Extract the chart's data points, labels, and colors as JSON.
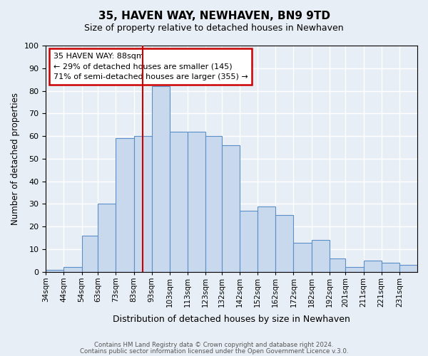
{
  "title": "35, HAVEN WAY, NEWHAVEN, BN9 9TD",
  "subtitle": "Size of property relative to detached houses in Newhaven",
  "xlabel": "Distribution of detached houses by size in Newhaven",
  "ylabel": "Number of detached properties",
  "bar_labels": [
    "34sqm",
    "44sqm",
    "54sqm",
    "63sqm",
    "73sqm",
    "83sqm",
    "93sqm",
    "103sqm",
    "113sqm",
    "123sqm",
    "132sqm",
    "142sqm",
    "152sqm",
    "162sqm",
    "172sqm",
    "182sqm",
    "192sqm",
    "201sqm",
    "211sqm",
    "221sqm",
    "231sqm"
  ],
  "bar_values": [
    1,
    2,
    16,
    30,
    59,
    60,
    82,
    62,
    62,
    60,
    56,
    27,
    29,
    25,
    13,
    14,
    6,
    2,
    5,
    4,
    3
  ],
  "bin_edges": [
    34,
    44,
    54,
    63,
    73,
    83,
    93,
    103,
    113,
    123,
    132,
    142,
    152,
    162,
    172,
    182,
    192,
    201,
    211,
    221,
    231,
    241
  ],
  "bar_color": "#c9d9ed",
  "bar_edge_color": "#5b8fc9",
  "background_color": "#e8eef5",
  "plot_bg_color": "#e8eef5",
  "grid_color": "#ffffff",
  "annotation_box_text": "35 HAVEN WAY: 88sqm\n← 29% of detached houses are smaller (145)\n71% of semi-detached houses are larger (355) →",
  "annotation_box_edge_color": "#cc0000",
  "annotation_box_bg": "#ffffff",
  "redline_x": 88,
  "ylim": [
    0,
    100
  ],
  "footnote1": "Contains HM Land Registry data © Crown copyright and database right 2024.",
  "footnote2": "Contains public sector information licensed under the Open Government Licence v.3.0."
}
